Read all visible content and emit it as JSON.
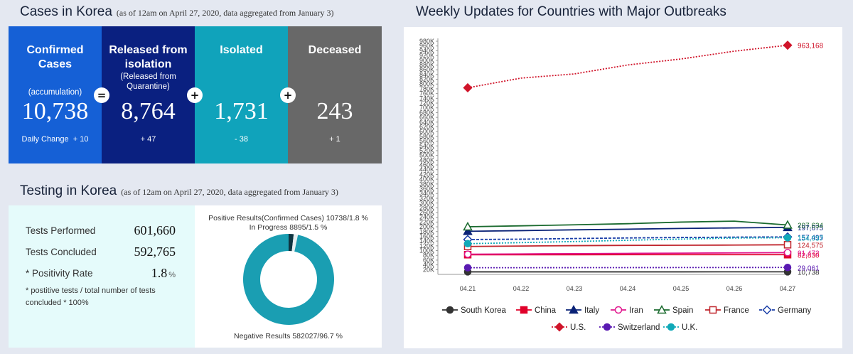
{
  "cases": {
    "title": "Cases in Korea",
    "note": "(as of 12am on April 27, 2020, data aggregated from January 3)",
    "cards": [
      {
        "title": "Confirmed Cases",
        "sub": "(accumulation)",
        "value": "10,738",
        "change_label": "Daily Change",
        "change": "+ 10"
      },
      {
        "title": "Released from isolation",
        "sub": "(Released from Quarantine)",
        "value": "8,764",
        "change": "+ 47"
      },
      {
        "title": "Isolated",
        "value": "1,731",
        "change": "- 38"
      },
      {
        "title": "Deceased",
        "value": "243",
        "change": "+ 1"
      }
    ],
    "operators": [
      "=",
      "+",
      "+"
    ]
  },
  "testing": {
    "title": "Testing in Korea",
    "note": "(as of 12am on April 27, 2020, data aggregated from January 3)",
    "rows": [
      {
        "label": "Tests Performed",
        "value": "601,660"
      },
      {
        "label": "Tests Concluded",
        "value": "592,765"
      },
      {
        "label": "* Positivity Rate",
        "value": "1.8",
        "unit": "%"
      }
    ],
    "footnote": "* postitive tests / total number of tests concluded * 100%",
    "pie": {
      "label_positive": "Positive Results(Confirmed Cases) 10738/1.8 %",
      "label_progress": "In Progress 8895/1.5 %",
      "label_negative": "Negative Results 582027/96.7 %",
      "segments": [
        {
          "name": "Positive",
          "value": 1.8,
          "color": "#0f3440"
        },
        {
          "name": "In Progress",
          "value": 1.5,
          "color": "#e4eef0"
        },
        {
          "name": "Negative",
          "value": 96.7,
          "color": "#1a9eb2"
        }
      ]
    }
  },
  "weekly": {
    "title": "Weekly Updates for Countries with Major Outbreaks"
  },
  "chart_data": {
    "type": "line",
    "title": "Weekly Updates for Countries with Major Outbreaks",
    "x": [
      "04.21",
      "04.22",
      "04.23",
      "04.24",
      "04.25",
      "04.26",
      "04.27"
    ],
    "ylim": [
      0,
      980000
    ],
    "yticks": [
      "20K",
      "40K",
      "60K",
      "80K",
      "100K",
      "120K",
      "140K",
      "160K",
      "180K",
      "200K",
      "220K",
      "240K",
      "260K",
      "280K",
      "300K",
      "320K",
      "340K",
      "360K",
      "380K",
      "400K",
      "420K",
      "440K",
      "460K",
      "480K",
      "500K",
      "520K",
      "540K",
      "560K",
      "580K",
      "600K",
      "620K",
      "640K",
      "660K",
      "680K",
      "700K",
      "720K",
      "740K",
      "760K",
      "780K",
      "800K",
      "820K",
      "840K",
      "860K",
      "880K",
      "900K",
      "920K",
      "940K",
      "960K",
      "980K"
    ],
    "series": [
      {
        "name": "South Korea",
        "color": "#333333",
        "marker": "circle",
        "dash": "",
        "values": [
          10683,
          10694,
          10702,
          10708,
          10718,
          10728,
          10738
        ],
        "end_label": "10,738"
      },
      {
        "name": "China",
        "color": "#e0002a",
        "marker": "square",
        "dash": "",
        "values": [
          82758,
          82788,
          82798,
          82804,
          82816,
          82827,
          82830
        ],
        "end_label": "82,830"
      },
      {
        "name": "Italy",
        "color": "#0a2277",
        "marker": "triangle",
        "dash": "",
        "values": [
          181228,
          183957,
          187327,
          189973,
          192994,
          195351,
          197675
        ],
        "end_label": "197,675"
      },
      {
        "name": "Iran",
        "color": "#e0148c",
        "marker": "circle-open",
        "dash": "",
        "values": [
          84802,
          85996,
          87026,
          88194,
          89328,
          90481,
          91472
        ],
        "end_label": "91,472"
      },
      {
        "name": "Spain",
        "color": "#1a6a2e",
        "marker": "triangle-open",
        "dash": "",
        "values": [
          200210,
          204178,
          208389,
          213024,
          219764,
          223759,
          207634
        ],
        "end_label": "207,634"
      },
      {
        "name": "France",
        "color": "#c0262d",
        "marker": "square-open",
        "dash": "",
        "values": [
          117324,
          119151,
          120804,
          121913,
          122577,
          123279,
          124575
        ],
        "end_label": "124,575"
      },
      {
        "name": "Germany",
        "color": "#1b3fa8",
        "marker": "diamond-open",
        "dash": "4 2",
        "values": [
          146527,
          148046,
          150648,
          153129,
          154999,
          156513,
          157495
        ],
        "end_label": "157,495"
      },
      {
        "name": "U.S.",
        "color": "#d0142a",
        "marker": "diamond",
        "dash": "2 2",
        "values": [
          784326,
          825041,
          842624,
          880204,
          905358,
          938154,
          963168
        ],
        "end_label": "963,168"
      },
      {
        "name": "Switzerland",
        "color": "#5a1ab2",
        "marker": "circle",
        "dash": "2 2",
        "values": [
          27944,
          28063,
          28268,
          28496,
          28677,
          28894,
          29061
        ],
        "end_label": "29,061"
      },
      {
        "name": "U.K.",
        "color": "#10a9b8",
        "marker": "circle",
        "dash": "2 2",
        "values": [
          129044,
          133495,
          138078,
          143464,
          148377,
          152840,
          154037
        ],
        "end_label": "154,037"
      }
    ]
  }
}
